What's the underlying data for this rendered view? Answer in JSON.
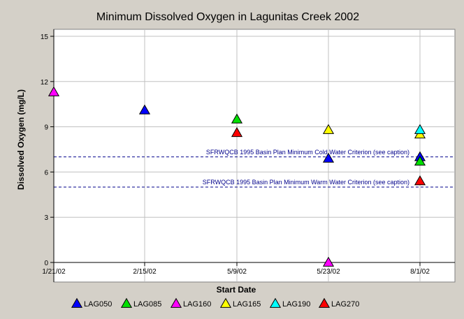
{
  "chart_data": {
    "type": "scatter",
    "title": "Minimum Dissolved Oxygen in Lagunitas Creek 2002",
    "xlabel": "Start Date",
    "ylabel": "Dissolved Oxygen (mg/L)",
    "ylim": [
      0,
      15
    ],
    "yticks": [
      "0",
      "3",
      "6",
      "9",
      "12",
      "15"
    ],
    "x_categories": [
      "1/21/02",
      "2/15/02",
      "5/9/02",
      "5/23/02",
      "8/1/02"
    ],
    "grid": true,
    "legend_position": "bottom",
    "series": [
      {
        "name": "LAG050",
        "color": "#0000ff",
        "points": [
          {
            "x": "2/15/02",
            "y": 10.1
          },
          {
            "x": "5/23/02",
            "y": 6.9
          },
          {
            "x": "8/1/02",
            "y": 7.0
          }
        ]
      },
      {
        "name": "LAG085",
        "color": "#00e000",
        "points": [
          {
            "x": "5/9/02",
            "y": 9.5
          },
          {
            "x": "8/1/02",
            "y": 6.7
          }
        ]
      },
      {
        "name": "LAG160",
        "color": "#ff00ff",
        "points": [
          {
            "x": "1/21/02",
            "y": 11.3
          },
          {
            "x": "5/23/02",
            "y": 0.0
          }
        ]
      },
      {
        "name": "LAG165",
        "color": "#ffff00",
        "points": [
          {
            "x": "5/23/02",
            "y": 8.8
          },
          {
            "x": "8/1/02",
            "y": 8.5
          }
        ]
      },
      {
        "name": "LAG190",
        "color": "#00ffff",
        "points": [
          {
            "x": "8/1/02",
            "y": 8.8
          }
        ]
      },
      {
        "name": "LAG270",
        "color": "#ff0000",
        "points": [
          {
            "x": "5/9/02",
            "y": 8.6
          },
          {
            "x": "8/1/02",
            "y": 5.4
          }
        ]
      }
    ],
    "reference_lines": [
      {
        "y": 7,
        "label": "SFRWQCB 1995 Basin Plan Minimum Cold Water Criterion (see caption)",
        "color": "#00008b"
      },
      {
        "y": 5,
        "label": "SFRWQCB 1995 Basin Plan Minimum Warm Water Criterion (see caption)",
        "color": "#00008b"
      }
    ],
    "plot_background": "#ffffff",
    "background": "#d4d0c8"
  }
}
